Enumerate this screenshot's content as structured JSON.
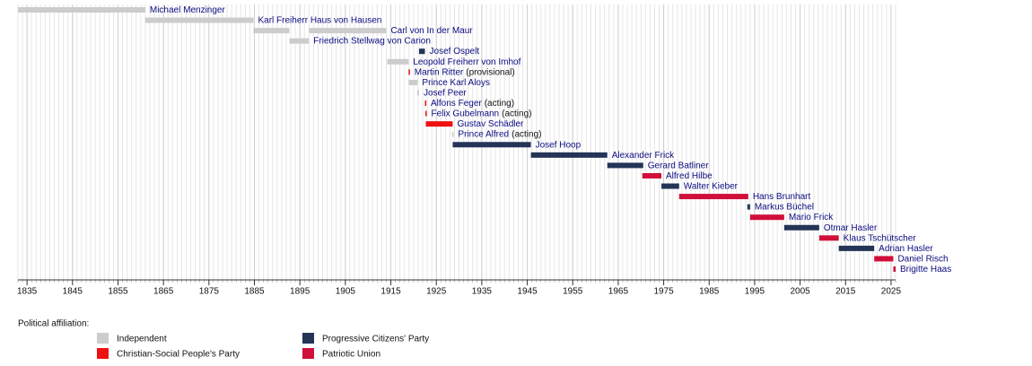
{
  "chart_data": {
    "type": "timeline",
    "xlim": [
      1833,
      2026
    ],
    "xticks": [
      1835,
      1845,
      1855,
      1865,
      1875,
      1885,
      1895,
      1905,
      1915,
      1925,
      1935,
      1945,
      1955,
      1965,
      1975,
      1985,
      1995,
      2005,
      2015,
      2025
    ],
    "minor_grid": true,
    "legend_title": "Political affiliation:",
    "parties": [
      {
        "name": "Independent",
        "color": "#cccccc"
      },
      {
        "name": "Christian-Social People's Party",
        "color": "#ee1111"
      },
      {
        "name": "Progressive Citizens' Party",
        "color": "#233457"
      },
      {
        "name": "Patriotic Union",
        "color": "#d0103a"
      }
    ],
    "bars": [
      {
        "name": "Michael Menzinger",
        "party": 0,
        "spans": [
          [
            1833,
            1861
          ]
        ]
      },
      {
        "name": "Karl Freiherr Haus von Hausen",
        "party": 0,
        "spans": [
          [
            1861,
            1884.8
          ]
        ]
      },
      {
        "name": "Carl von In der Maur",
        "party": 0,
        "spans": [
          [
            1884.8,
            1892.7
          ],
          [
            1897,
            1914
          ]
        ]
      },
      {
        "name": "Friedrich Stellwag von Carion",
        "party": 0,
        "spans": [
          [
            1892.7,
            1897
          ]
        ]
      },
      {
        "name": "Josef Ospelt",
        "party": 2,
        "spans": [
          [
            1921.2,
            1922.5
          ]
        ]
      },
      {
        "name": "Leopold Freiherr von Imhof",
        "party": 0,
        "spans": [
          [
            1914.2,
            1918.9
          ]
        ]
      },
      {
        "name": "Martin Ritter",
        "note": "(provisional)",
        "party": 1,
        "spans": [
          [
            1918.9,
            1919.2
          ]
        ]
      },
      {
        "name": "Prince Karl Aloys",
        "party": 0,
        "spans": [
          [
            1918.9,
            1920.9
          ]
        ]
      },
      {
        "name": "Josef Peer",
        "party": 0,
        "spans": [
          [
            1920.8,
            1921.2
          ]
        ]
      },
      {
        "name": "Alfons Feger",
        "note": "(acting)",
        "party": 1,
        "spans": [
          [
            1922.5,
            1922.7
          ]
        ]
      },
      {
        "name": "Felix Gubelmann",
        "note": "(acting)",
        "party": 1,
        "spans": [
          [
            1922.6,
            1922.8
          ]
        ]
      },
      {
        "name": "Gustav Schädler",
        "party": 1,
        "spans": [
          [
            1922.7,
            1928.6
          ]
        ]
      },
      {
        "name": "Prince Alfred",
        "note": "(acting)",
        "party": 0,
        "spans": [
          [
            1928.5,
            1928.7
          ]
        ]
      },
      {
        "name": "Josef Hoop",
        "party": 2,
        "spans": [
          [
            1928.6,
            1945.8
          ]
        ]
      },
      {
        "name": "Alexander Frick",
        "party": 2,
        "spans": [
          [
            1945.8,
            1962.6
          ]
        ]
      },
      {
        "name": "Gerard Batliner",
        "party": 2,
        "spans": [
          [
            1962.6,
            1970.5
          ]
        ]
      },
      {
        "name": "Alfred Hilbe",
        "party": 3,
        "spans": [
          [
            1970.3,
            1974.5
          ]
        ]
      },
      {
        "name": "Walter Kieber",
        "party": 2,
        "spans": [
          [
            1974.5,
            1978.4
          ]
        ]
      },
      {
        "name": "Hans Brunhart",
        "party": 3,
        "spans": [
          [
            1978.4,
            1993.6
          ]
        ]
      },
      {
        "name": "Markus Büchel",
        "party": 2,
        "spans": [
          [
            1993.4,
            1994
          ]
        ]
      },
      {
        "name": "Mario Frick",
        "party": 3,
        "spans": [
          [
            1994,
            2001.5
          ]
        ]
      },
      {
        "name": "Otmar Hasler",
        "party": 2,
        "spans": [
          [
            2001.5,
            2009.2
          ]
        ]
      },
      {
        "name": "Klaus Tschütscher",
        "party": 3,
        "spans": [
          [
            2009.2,
            2013.5
          ]
        ]
      },
      {
        "name": "Adrian Hasler",
        "party": 2,
        "spans": [
          [
            2013.5,
            2021.3
          ]
        ]
      },
      {
        "name": "Daniel Risch",
        "party": 3,
        "spans": [
          [
            2021.3,
            2025.5
          ]
        ]
      },
      {
        "name": "Brigitte Haas",
        "party": 3,
        "spans": [
          [
            2025.5,
            2026
          ]
        ]
      }
    ]
  }
}
